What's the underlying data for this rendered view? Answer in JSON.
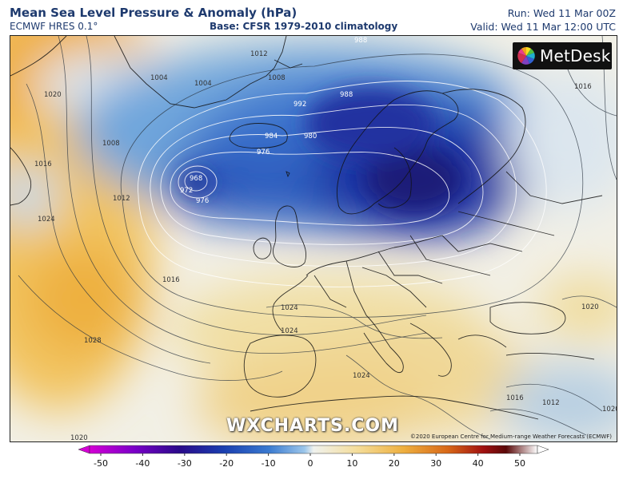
{
  "header": {
    "title": "Mean Sea Level Pressure & Anomaly (hPa)",
    "model": "ECMWF HRES 0.1°",
    "base": "Base: CFSR 1979-2010 climatology",
    "run": "Run: Wed 11 Mar 00Z",
    "valid": "Valid: Wed 11 Mar 12:00 UTC"
  },
  "logo_text": "MetDesk",
  "watermark": "WXCHARTS.COM",
  "credit": "©2020 European Centre for Medium-range Weather Forecasts (ECMWF)",
  "isobar_labels": [
    "1020",
    "1016",
    "1012",
    "1008",
    "1004",
    "1004",
    "1008",
    "1012",
    "988",
    "992",
    "988",
    "984",
    "980",
    "976",
    "968",
    "972",
    "976",
    "1024",
    "1016",
    "1024",
    "1028",
    "1024",
    "1024",
    "1020",
    "1020",
    "1016",
    "1012",
    "1016",
    "1020"
  ],
  "colorbar": {
    "ticks": [
      "-50",
      "-40",
      "-30",
      "-20",
      "-10",
      "0",
      "10",
      "20",
      "30",
      "40",
      "50"
    ],
    "colors": [
      "#d400d4",
      "#7a00c8",
      "#2a0a8a",
      "#1a3fb0",
      "#3a7ad0",
      "#9cc6ea",
      "#f0f2ee",
      "#f4dc98",
      "#eeb040",
      "#d86818",
      "#a01010",
      "#5a0808",
      "#ffffff"
    ]
  }
}
